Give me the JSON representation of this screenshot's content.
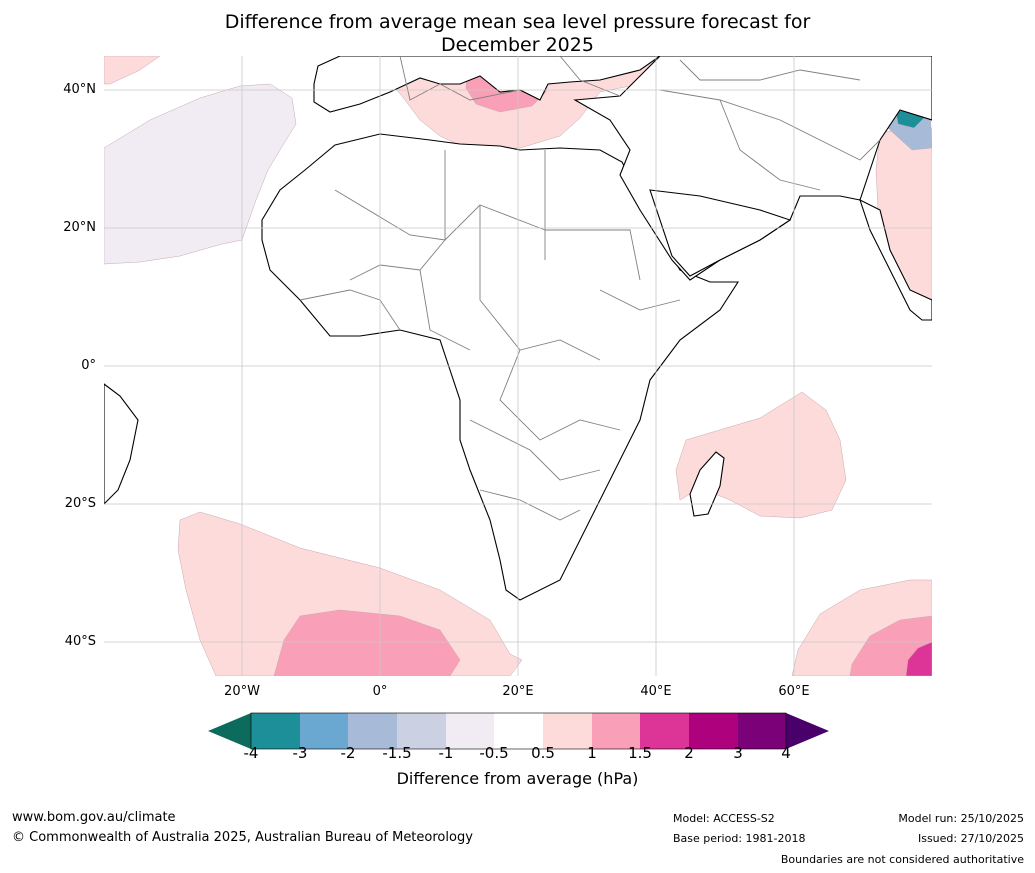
{
  "title": {
    "line1": "Difference from average mean sea level pressure forecast for",
    "line2": "December 2025"
  },
  "map": {
    "lat_labels": [
      "40°N",
      "20°N",
      "0°",
      "20°S",
      "40°S"
    ],
    "lon_labels": [
      "20°W",
      "0°",
      "20°E",
      "40°E",
      "60°E"
    ],
    "colors": {
      "land_fill": "#ffffff",
      "coast": "#000000",
      "border": "#808080",
      "grid": "#c8c8c8",
      "light_neg": "#f1ecf4",
      "light_pos": "#fddbdb",
      "mid_pos": "#f9a0b8",
      "strong_pos": "#dd3497"
    }
  },
  "colorbar": {
    "ticks": [
      "-4",
      "-3",
      "-2",
      "-1.5",
      "-1",
      "-0.5",
      "0.5",
      "1",
      "1.5",
      "2",
      "3",
      "4"
    ],
    "colors": [
      "#0c6b5c",
      "#1d8f99",
      "#6aa8d2",
      "#a7bad8",
      "#ccd0e3",
      "#f1ecf4",
      "#ffffff",
      "#fddbdb",
      "#f9a0b8",
      "#dd3497",
      "#ae017e",
      "#7a0177",
      "#49006a"
    ],
    "label": "Difference from average (hPa)"
  },
  "footer": {
    "website": "www.bom.gov.au/climate",
    "copyright": "© Commonwealth of Australia 2025, Australian Bureau of Meteorology",
    "model": "Model: ACCESS-S2",
    "base_period": "Base period: 1981-2018",
    "model_run": "Model run: 25/10/2025",
    "issued": "Issued: 27/10/2025",
    "disclaimer": "Boundaries are not considered authoritative"
  }
}
